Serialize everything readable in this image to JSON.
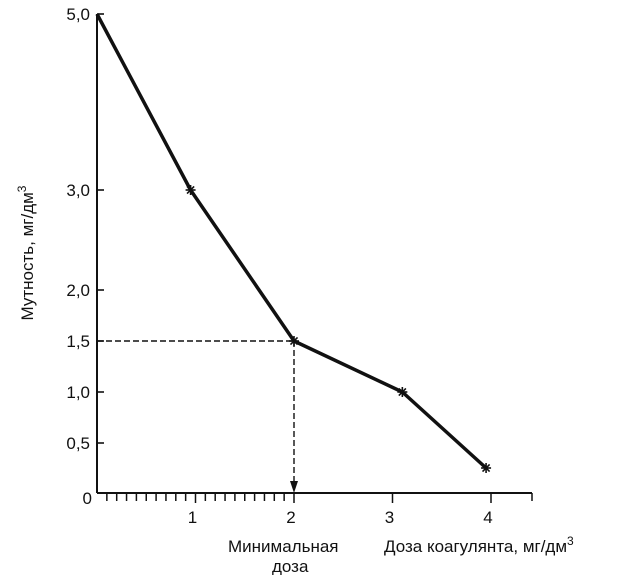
{
  "chart_data": {
    "type": "line",
    "title": "",
    "xlabel": "Доза коагулянта, мг/дм",
    "xlabel_sup": "3",
    "ylabel": "Мутность, мг/дм",
    "ylabel_sup": "3",
    "x_ticks": [
      "1",
      "2",
      "3",
      "4"
    ],
    "x_tick_values": [
      1,
      2,
      3,
      4
    ],
    "y_ticks": [
      {
        "value": 0,
        "label": "0"
      },
      {
        "value": 0.5,
        "label": "0,5"
      },
      {
        "value": 1.0,
        "label": "1,0"
      },
      {
        "value": 1.5,
        "label": "1,5"
      },
      {
        "value": 2.0,
        "label": "2,0"
      },
      {
        "value": 3.0,
        "label": "3,0"
      },
      {
        "value": 5.0,
        "label": "5,0"
      }
    ],
    "series": [
      {
        "points": [
          {
            "x": 0,
            "y": 5.0
          },
          {
            "x": 0.95,
            "y": 3.0
          },
          {
            "x": 2.0,
            "y": 1.5
          },
          {
            "x": 3.1,
            "y": 1.0
          },
          {
            "x": 3.95,
            "y": 0.25
          }
        ],
        "markers": [
          false,
          true,
          true,
          true,
          true
        ]
      }
    ],
    "xlim": [
      0,
      4.9
    ],
    "grid": false,
    "annotation": {
      "x": 2.0,
      "y": 1.5,
      "label_line1": "Минимальная",
      "label_line2": "доза"
    },
    "colors": {
      "line": "#111111",
      "axis": "#111111"
    }
  }
}
